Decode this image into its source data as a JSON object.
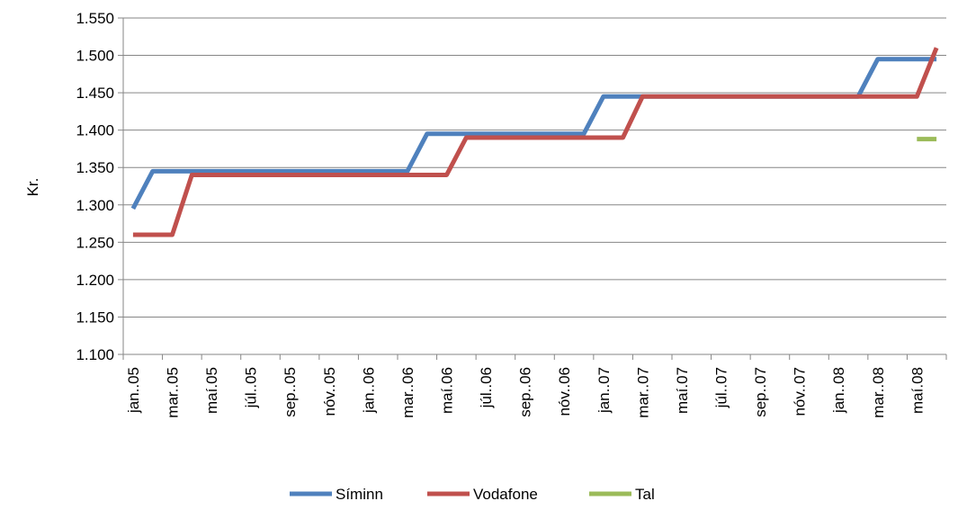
{
  "chart_data": {
    "type": "line",
    "title": "",
    "xlabel": "",
    "ylabel": "Kr.",
    "ylim": [
      1100,
      1550
    ],
    "y_ticks": [
      "1.100",
      "1.150",
      "1.200",
      "1.250",
      "1.300",
      "1.350",
      "1.400",
      "1.450",
      "1.500",
      "1.550"
    ],
    "y_tick_values": [
      1100,
      1150,
      1200,
      1250,
      1300,
      1350,
      1400,
      1450,
      1500,
      1550
    ],
    "x_tick_labels": [
      "jan..05",
      "mar..05",
      "maí.05",
      "júl..05",
      "sep..05",
      "nóv..05",
      "jan..06",
      "mar..06",
      "maí.06",
      "júl..06",
      "sep..06",
      "nóv..06",
      "jan..07",
      "mar..07",
      "maí.07",
      "júl..07",
      "sep..07",
      "nóv..07",
      "jan..08",
      "mar..08",
      "maí.08"
    ],
    "grid": "horizontal",
    "legend_position": "bottom",
    "series": [
      {
        "name": "Síminn",
        "color": "#4F81BD",
        "points": [
          [
            "2005-01",
            1295
          ],
          [
            "2005-02",
            1345
          ],
          [
            "2005-03",
            1345
          ],
          [
            "2005-04",
            1345
          ],
          [
            "2005-05",
            1345
          ],
          [
            "2005-06",
            1345
          ],
          [
            "2005-07",
            1345
          ],
          [
            "2005-08",
            1345
          ],
          [
            "2005-09",
            1345
          ],
          [
            "2005-10",
            1345
          ],
          [
            "2005-11",
            1345
          ],
          [
            "2005-12",
            1345
          ],
          [
            "2006-01",
            1345
          ],
          [
            "2006-02",
            1345
          ],
          [
            "2006-03",
            1345
          ],
          [
            "2006-04",
            1395
          ],
          [
            "2006-05",
            1395
          ],
          [
            "2006-06",
            1395
          ],
          [
            "2006-07",
            1395
          ],
          [
            "2006-08",
            1395
          ],
          [
            "2006-09",
            1395
          ],
          [
            "2006-10",
            1395
          ],
          [
            "2006-11",
            1395
          ],
          [
            "2006-12",
            1395
          ],
          [
            "2007-01",
            1445
          ],
          [
            "2007-02",
            1445
          ],
          [
            "2007-03",
            1445
          ],
          [
            "2007-04",
            1445
          ],
          [
            "2007-05",
            1445
          ],
          [
            "2007-06",
            1445
          ],
          [
            "2007-07",
            1445
          ],
          [
            "2007-08",
            1445
          ],
          [
            "2007-09",
            1445
          ],
          [
            "2007-10",
            1445
          ],
          [
            "2007-11",
            1445
          ],
          [
            "2007-12",
            1445
          ],
          [
            "2008-01",
            1445
          ],
          [
            "2008-02",
            1445
          ],
          [
            "2008-03",
            1495
          ],
          [
            "2008-04",
            1495
          ],
          [
            "2008-05",
            1495
          ],
          [
            "2008-06",
            1495
          ]
        ]
      },
      {
        "name": "Vodafone",
        "color": "#C0504D",
        "points": [
          [
            "2005-01",
            1260
          ],
          [
            "2005-02",
            1260
          ],
          [
            "2005-03",
            1260
          ],
          [
            "2005-04",
            1340
          ],
          [
            "2005-05",
            1340
          ],
          [
            "2005-06",
            1340
          ],
          [
            "2005-07",
            1340
          ],
          [
            "2005-08",
            1340
          ],
          [
            "2005-09",
            1340
          ],
          [
            "2005-10",
            1340
          ],
          [
            "2005-11",
            1340
          ],
          [
            "2005-12",
            1340
          ],
          [
            "2006-01",
            1340
          ],
          [
            "2006-02",
            1340
          ],
          [
            "2006-03",
            1340
          ],
          [
            "2006-04",
            1340
          ],
          [
            "2006-05",
            1340
          ],
          [
            "2006-06",
            1390
          ],
          [
            "2006-07",
            1390
          ],
          [
            "2006-08",
            1390
          ],
          [
            "2006-09",
            1390
          ],
          [
            "2006-10",
            1390
          ],
          [
            "2006-11",
            1390
          ],
          [
            "2006-12",
            1390
          ],
          [
            "2007-01",
            1390
          ],
          [
            "2007-02",
            1390
          ],
          [
            "2007-03",
            1445
          ],
          [
            "2007-04",
            1445
          ],
          [
            "2007-05",
            1445
          ],
          [
            "2007-06",
            1445
          ],
          [
            "2007-07",
            1445
          ],
          [
            "2007-08",
            1445
          ],
          [
            "2007-09",
            1445
          ],
          [
            "2007-10",
            1445
          ],
          [
            "2007-11",
            1445
          ],
          [
            "2007-12",
            1445
          ],
          [
            "2008-01",
            1445
          ],
          [
            "2008-02",
            1445
          ],
          [
            "2008-03",
            1445
          ],
          [
            "2008-04",
            1445
          ],
          [
            "2008-05",
            1445
          ],
          [
            "2008-06",
            1510
          ]
        ]
      },
      {
        "name": "Tal",
        "color": "#9BBB59",
        "points": [
          [
            "2008-05",
            1388
          ],
          [
            "2008-06",
            1388
          ]
        ]
      }
    ]
  }
}
